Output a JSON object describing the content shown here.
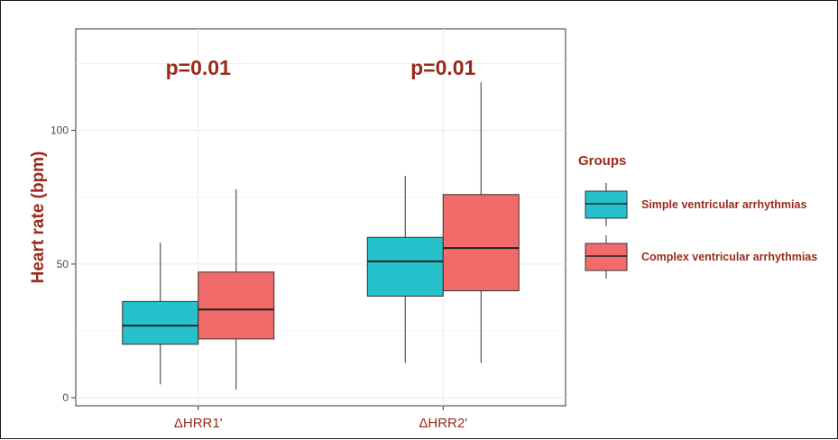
{
  "chart_data": {
    "type": "boxplot",
    "title": "",
    "xlabel": "",
    "ylabel": "Heart rate (bpm)",
    "ylim": [
      -3,
      138
    ],
    "yticks": [
      0,
      50,
      100
    ],
    "categories": [
      "ΔHRR1'",
      "ΔHRR2'"
    ],
    "annotations": [
      "p=0.01",
      "p=0.01"
    ],
    "legend": {
      "title": "Groups",
      "position": "right"
    },
    "grid": true,
    "series": [
      {
        "name": "Simple ventricular arrhythmias",
        "color": "#26C1CB",
        "boxes": [
          {
            "min": 5,
            "q1": 20,
            "median": 27,
            "q3": 36,
            "max": 58
          },
          {
            "min": 13,
            "q1": 38,
            "median": 51,
            "q3": 60,
            "max": 83
          }
        ]
      },
      {
        "name": "Complex ventricular arrhythmias",
        "color": "#F26B6B",
        "boxes": [
          {
            "min": 3,
            "q1": 22,
            "median": 33,
            "q3": 47,
            "max": 78
          },
          {
            "min": 13,
            "q1": 40,
            "median": 56,
            "q3": 76,
            "max": 118
          }
        ]
      }
    ],
    "colors": {
      "label_red": "#9B2A1C",
      "axis_text": "#4D4D4D",
      "grid": "#EBEBEB"
    }
  }
}
